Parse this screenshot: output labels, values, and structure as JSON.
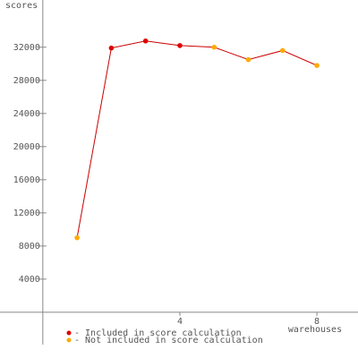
{
  "chart_data": {
    "type": "line",
    "y_label": "scores",
    "x_label": "warehouses",
    "x": [
      1,
      2,
      3,
      4,
      5,
      6,
      7,
      8
    ],
    "values": [
      9000,
      31900,
      32750,
      32200,
      32000,
      30500,
      31600,
      29800
    ],
    "line_color": "#cc0000",
    "point_colors": [
      "#ffaa00",
      "#dd0000",
      "#dd0000",
      "#dd0000",
      "#ffaa00",
      "#ffaa00",
      "#ffaa00",
      "#ffaa00"
    ],
    "legend": [
      {
        "label": "- Included in score calculation",
        "color": "#dd0000"
      },
      {
        "label": "- Not included in score calculation",
        "color": "#ffaa00"
      }
    ],
    "xlim": [
      -1.25,
      9.2
    ],
    "xticks": [
      4,
      8
    ],
    "ylim": [
      -3900,
      37700
    ],
    "yticks": [
      4000,
      8000,
      12000,
      16000,
      20000,
      24000,
      28000,
      32000
    ]
  }
}
